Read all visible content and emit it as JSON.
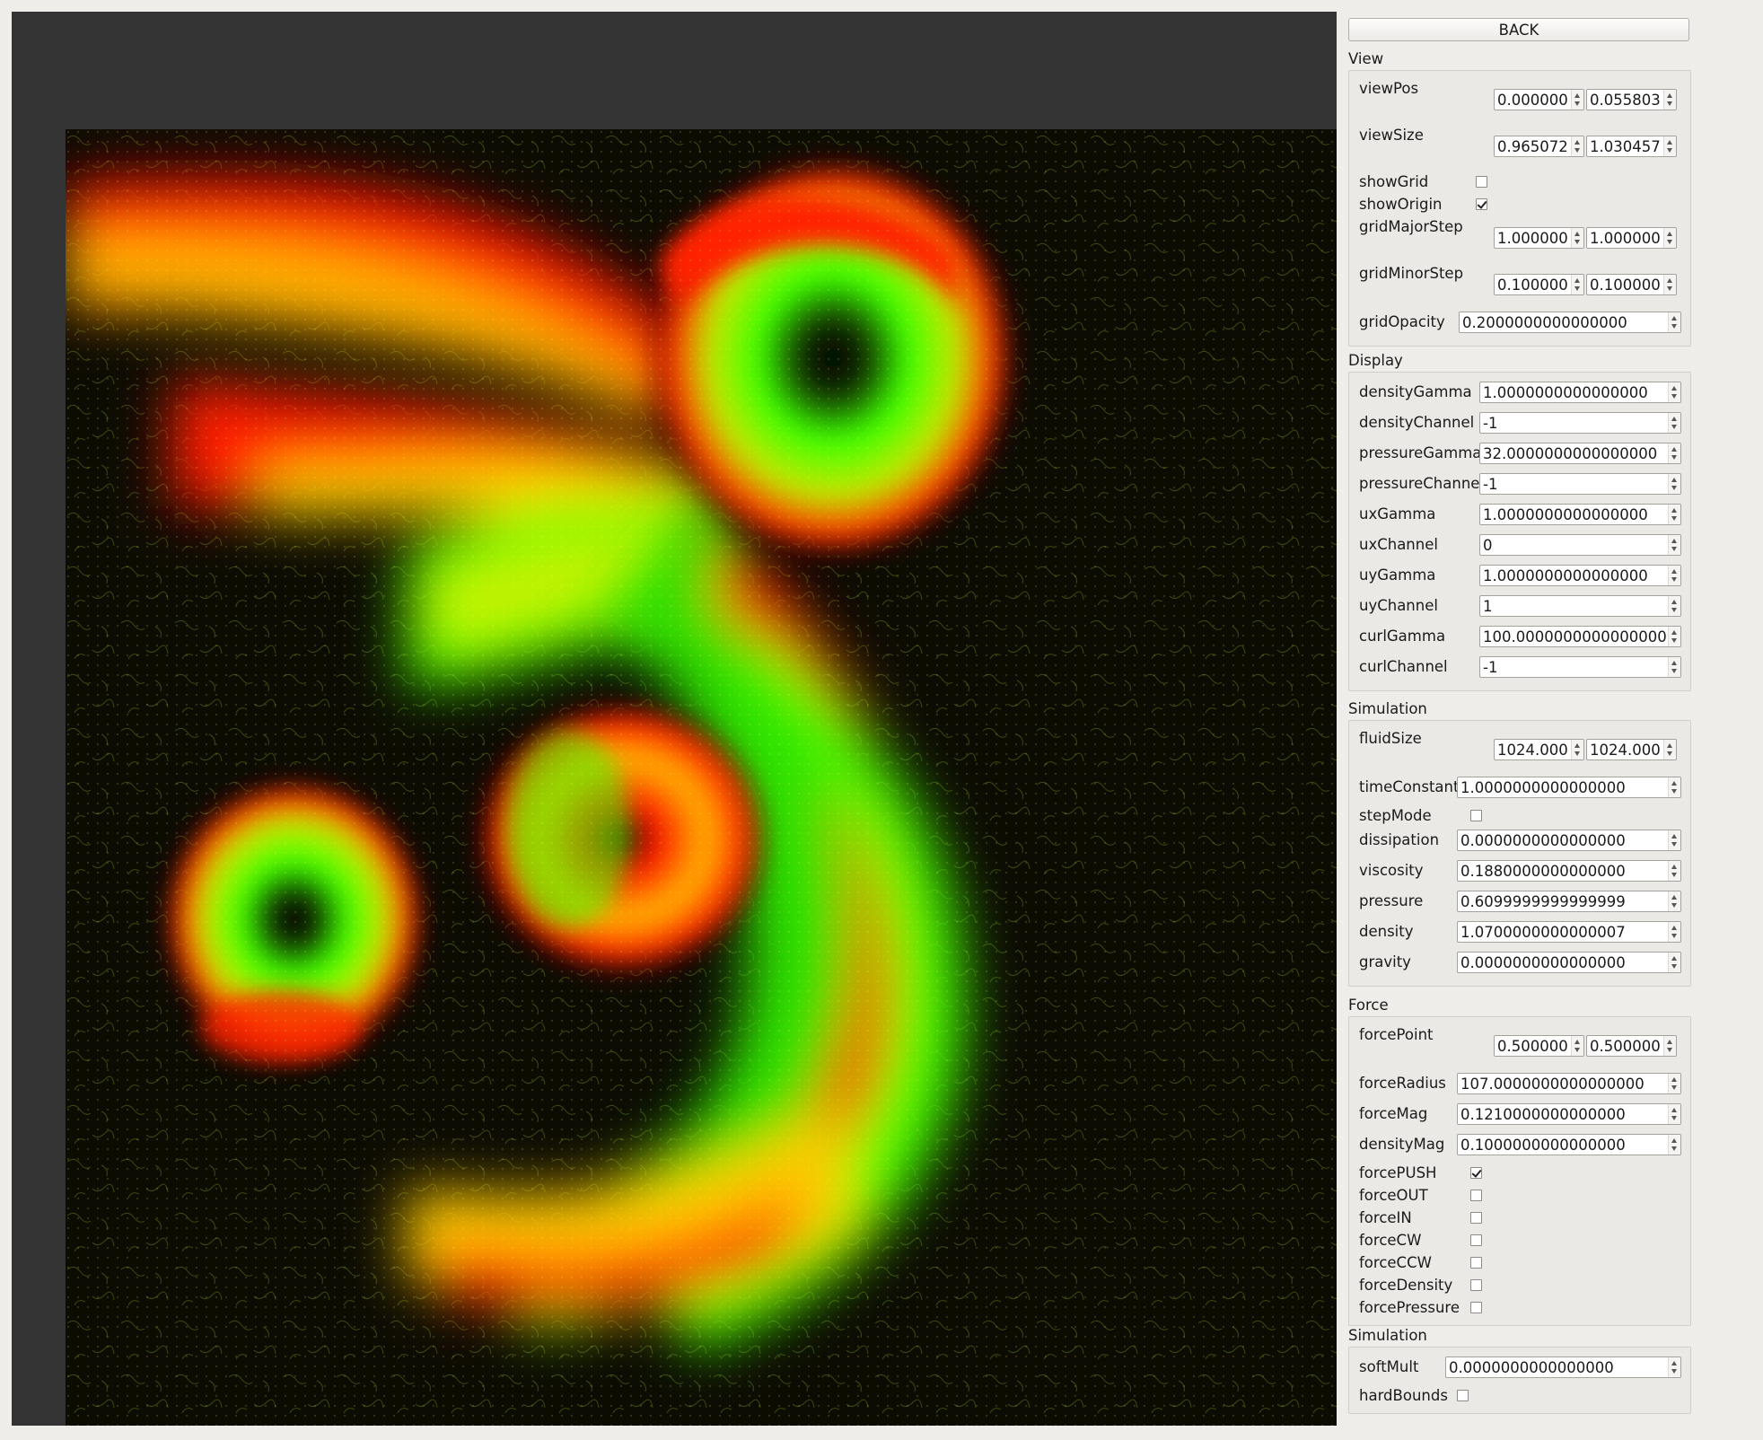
{
  "panel": {
    "back_label": "BACK",
    "groups": [
      {
        "title": "View",
        "rows": [
          {
            "label": "viewPos",
            "kind": "pair",
            "values": [
              "0.000000",
              "0.055803"
            ]
          },
          {
            "label": "viewSize",
            "kind": "pair",
            "values": [
              "0.965072",
              "1.030457"
            ]
          },
          {
            "label": "showGrid",
            "kind": "check",
            "checked": false
          },
          {
            "label": "showOrigin",
            "kind": "check",
            "checked": true
          },
          {
            "label": "gridMajorStep",
            "kind": "pair",
            "values": [
              "1.000000",
              "1.000000"
            ]
          },
          {
            "label": "gridMinorStep",
            "kind": "pair",
            "values": [
              "0.100000",
              "0.100000"
            ]
          },
          {
            "label": "gridOpacity",
            "kind": "single",
            "value": "0.2000000000000000"
          }
        ]
      },
      {
        "title": "Display",
        "rows": [
          {
            "label": "densityGamma",
            "kind": "single",
            "value": "1.0000000000000000"
          },
          {
            "label": "densityChannel",
            "kind": "single",
            "value": "-1"
          },
          {
            "label": "pressureGamma",
            "kind": "single",
            "value": "32.0000000000000000"
          },
          {
            "label": "pressureChannel",
            "kind": "single",
            "value": "-1"
          },
          {
            "label": "uxGamma",
            "kind": "single",
            "value": "1.0000000000000000"
          },
          {
            "label": "uxChannel",
            "kind": "single",
            "value": "0"
          },
          {
            "label": "uyGamma",
            "kind": "single",
            "value": "1.0000000000000000"
          },
          {
            "label": "uyChannel",
            "kind": "single",
            "value": "1"
          },
          {
            "label": "curlGamma",
            "kind": "single",
            "value": "100.0000000000000000"
          },
          {
            "label": "curlChannel",
            "kind": "single",
            "value": "-1"
          }
        ]
      },
      {
        "title": "Simulation",
        "rows": [
          {
            "label": "fluidSize",
            "kind": "pair",
            "values": [
              "1024.000",
              "1024.000"
            ]
          },
          {
            "label": "timeConstant",
            "kind": "single",
            "value": "1.0000000000000000"
          },
          {
            "label": "stepMode",
            "kind": "check",
            "checked": false
          },
          {
            "label": "dissipation",
            "kind": "single",
            "value": "0.0000000000000000"
          },
          {
            "label": "viscosity",
            "kind": "single",
            "value": "0.1880000000000000"
          },
          {
            "label": "pressure",
            "kind": "single",
            "value": "0.6099999999999999"
          },
          {
            "label": "density",
            "kind": "single",
            "value": "1.0700000000000007"
          },
          {
            "label": "gravity",
            "kind": "single",
            "value": "0.0000000000000000"
          }
        ]
      },
      {
        "title": "Force",
        "rows": [
          {
            "label": "forcePoint",
            "kind": "pair",
            "values": [
              "0.500000",
              "0.500000"
            ]
          },
          {
            "label": "forceRadius",
            "kind": "single",
            "value": "107.0000000000000000"
          },
          {
            "label": "forceMag",
            "kind": "single",
            "value": "0.1210000000000000"
          },
          {
            "label": "densityMag",
            "kind": "single",
            "value": "0.1000000000000000"
          },
          {
            "label": "forcePUSH",
            "kind": "check",
            "checked": true
          },
          {
            "label": "forceOUT",
            "kind": "check",
            "checked": false
          },
          {
            "label": "forceIN",
            "kind": "check",
            "checked": false
          },
          {
            "label": "forceCW",
            "kind": "check",
            "checked": false
          },
          {
            "label": "forceCCW",
            "kind": "check",
            "checked": false
          },
          {
            "label": "forceDensity",
            "kind": "check",
            "checked": false
          },
          {
            "label": "forcePressure",
            "kind": "check",
            "checked": false
          }
        ]
      },
      {
        "title": "Simulation",
        "rows": [
          {
            "label": "softMult",
            "kind": "single",
            "value": "0.0000000000000000"
          },
          {
            "label": "hardBounds",
            "kind": "check",
            "checked": false
          }
        ]
      }
    ]
  }
}
